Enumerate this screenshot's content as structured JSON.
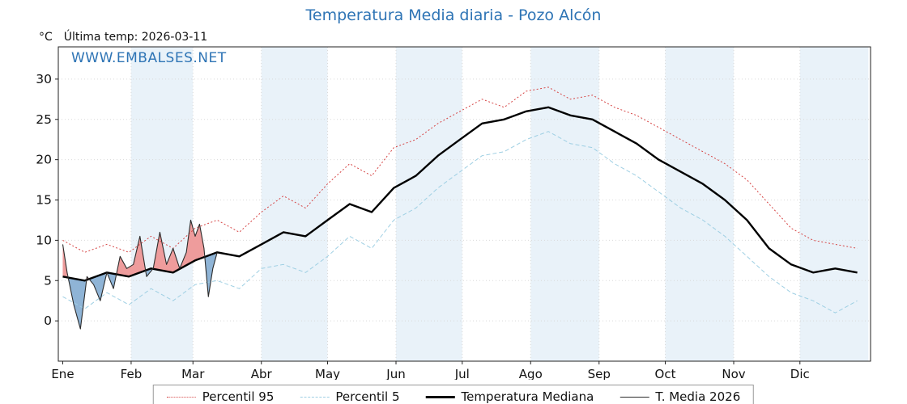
{
  "title": "Temperatura Media diaria - Pozo Alcón",
  "header": {
    "y_unit_label": "°C",
    "last_temp_label": "Última temp: 2026-03-11"
  },
  "watermark": "WWW.EMBALSES.NET",
  "colors": {
    "title_blue": "#2e74b5",
    "watermark_blue": "#2e74b5",
    "p95": "#d64545",
    "p5": "#9ecfe3",
    "median": "#000000",
    "t2026": "#2b2b2b",
    "fill_above": "#ee9c9c",
    "fill_below": "#8fb4d6",
    "month_band": "#e9f2f9",
    "grid": "#d9d9d9",
    "axis": "#222222"
  },
  "legend": {
    "items": [
      {
        "label": "Percentil 95"
      },
      {
        "label": "Percentil 5"
      },
      {
        "label": "Temperatura Mediana"
      },
      {
        "label": "T. Media 2026"
      }
    ]
  },
  "chart_data": {
    "type": "line",
    "title": "Temperatura Media diaria - Pozo Alcón",
    "xlabel": "",
    "ylabel": "°C",
    "ylim": [
      -5,
      34
    ],
    "yticks": [
      0,
      5,
      10,
      15,
      20,
      25,
      30
    ],
    "xlim_days": [
      -2,
      366
    ],
    "month_labels": [
      "Ene",
      "Feb",
      "Mar",
      "Abr",
      "May",
      "Jun",
      "Jul",
      "Ago",
      "Sep",
      "Oct",
      "Nov",
      "Dic"
    ],
    "month_start_days": [
      0,
      31,
      59,
      90,
      120,
      151,
      181,
      212,
      243,
      273,
      304,
      334,
      365
    ],
    "shaded_months": "alternate (Feb, Abr, Jun, Ago, Oct, Dic) light blue bands",
    "grid": "faint dotted",
    "legend_position": "bottom center",
    "x_days": [
      0,
      10,
      20,
      30,
      40,
      50,
      60,
      70,
      80,
      90,
      100,
      110,
      120,
      130,
      140,
      150,
      160,
      170,
      180,
      190,
      200,
      210,
      220,
      230,
      240,
      250,
      260,
      270,
      280,
      290,
      300,
      310,
      320,
      330,
      340,
      350,
      360
    ],
    "series": [
      {
        "name": "Percentil 95",
        "style": "dotted",
        "width": 1,
        "color_key": "p95",
        "values": [
          10,
          8.5,
          9.5,
          8.5,
          10.5,
          9,
          11.5,
          12.5,
          11,
          13.5,
          15.5,
          14,
          17,
          19.5,
          18,
          21.5,
          22.5,
          24.5,
          26,
          27.5,
          26.5,
          28.5,
          29,
          27.5,
          28,
          26.5,
          25.5,
          24,
          22.5,
          21,
          19.5,
          17.5,
          14.5,
          11.5,
          10,
          9.5,
          9
        ]
      },
      {
        "name": "Percentil 5",
        "style": "dashed",
        "width": 1,
        "color_key": "p5",
        "values": [
          3,
          1.5,
          3.5,
          2,
          4,
          2.5,
          4.5,
          5,
          4,
          6.5,
          7,
          6,
          8,
          10.5,
          9,
          12.5,
          14,
          16.5,
          18.5,
          20.5,
          21,
          22.5,
          23.5,
          22,
          21.5,
          19.5,
          18,
          16,
          14,
          12.5,
          10.5,
          8,
          5.5,
          3.5,
          2.5,
          1,
          2.5
        ]
      },
      {
        "name": "Temperatura Mediana",
        "style": "solid",
        "width": 2.4,
        "color_key": "median",
        "values": [
          5.5,
          5,
          6,
          5.5,
          6.5,
          6,
          7.5,
          8.5,
          8,
          9.5,
          11,
          10.5,
          12.5,
          14.5,
          13.5,
          16.5,
          18,
          20.5,
          22.5,
          24.5,
          25,
          26,
          26.5,
          25.5,
          25,
          23.5,
          22,
          20,
          18.5,
          17,
          15,
          12.5,
          9,
          7,
          6,
          6.5,
          6
        ]
      },
      {
        "name": "T. Media 2026",
        "style": "solid",
        "width": 1.1,
        "color_key": "t2026",
        "x_days": [
          0,
          2,
          5,
          8,
          11,
          14,
          17,
          20,
          23,
          26,
          29,
          32,
          35,
          38,
          41,
          44,
          47,
          50,
          53,
          56,
          58,
          60,
          62,
          64,
          66,
          68,
          70
        ],
        "values": [
          9.5,
          6,
          2,
          -1,
          5.5,
          4.5,
          2.5,
          6,
          4,
          8,
          6.5,
          7,
          10.5,
          5.5,
          6.5,
          11,
          7,
          9,
          6.5,
          8.5,
          12.5,
          10.5,
          12,
          9,
          3,
          6.5,
          8.5
        ]
      }
    ],
    "fill_rule": "area between T. Media 2026 and Temperatura Mediana: red where 2026 above median, blue where below; 2026 data ends 2026-03-11 (day 70)"
  }
}
